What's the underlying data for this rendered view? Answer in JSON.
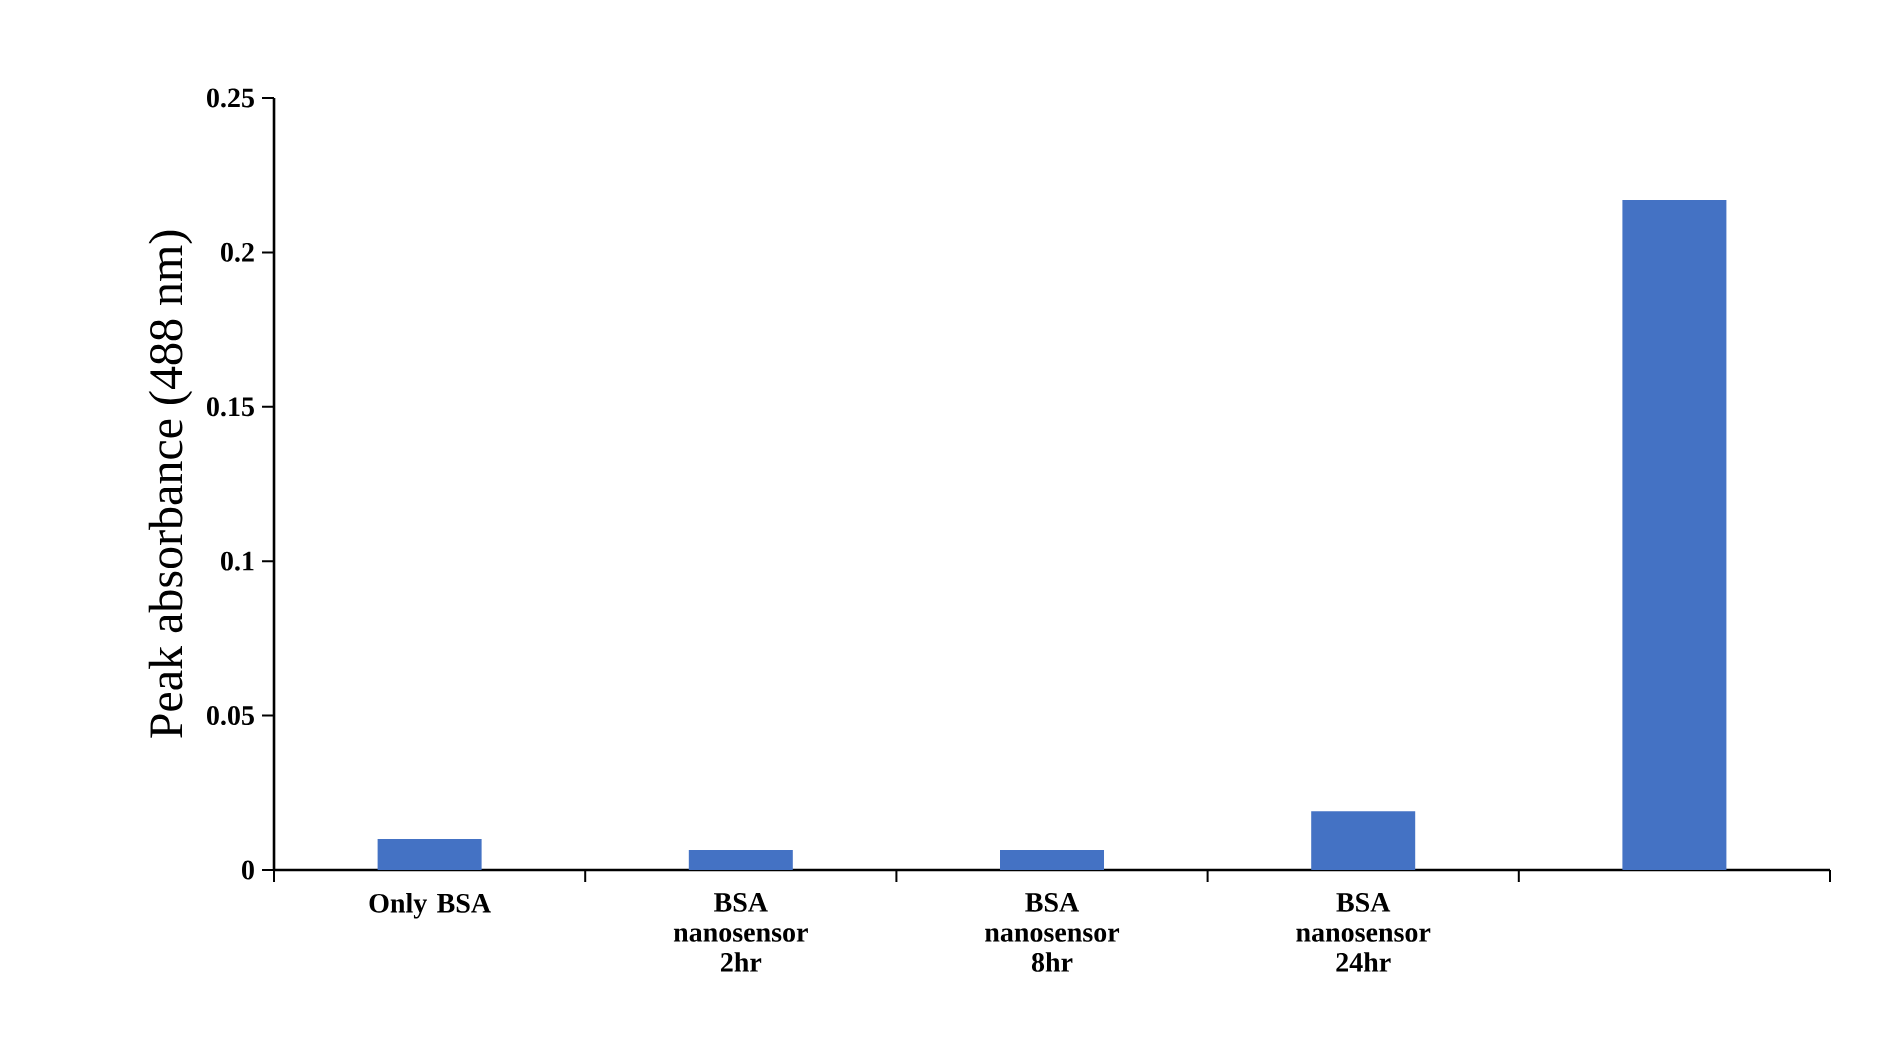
{
  "chart_data": {
    "type": "bar",
    "ylabel": "Peak absorbance (488 nm)",
    "categories": [
      "Only BSA",
      "BSA nanosensor 2hr",
      "BSA nanosensor 8hr",
      "BSA nanosensor 24hr",
      null
    ],
    "values": [
      0.01,
      0.0065,
      0.0065,
      0.019,
      0.217
    ],
    "color": "#4472c4",
    "ylim": [
      0,
      0.25
    ],
    "yticks": [
      0,
      0.05,
      0.1,
      0.15,
      0.2,
      0.25
    ],
    "grid": false
  }
}
